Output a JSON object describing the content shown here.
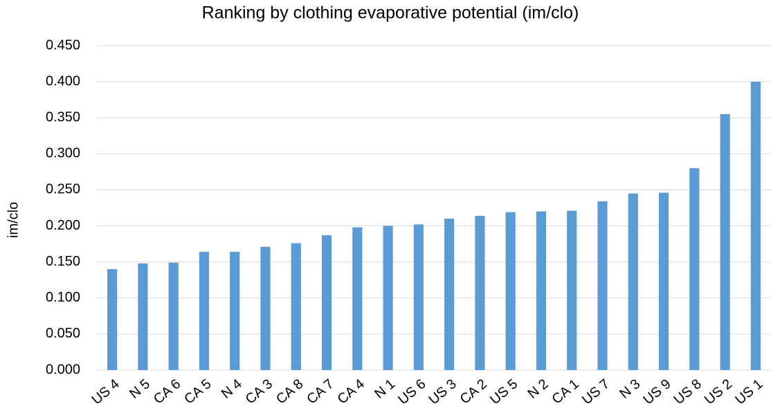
{
  "chart_data": {
    "type": "bar",
    "title": "Ranking by clothing evaporative potential (im/clo)",
    "y_label": "im/clo",
    "categories": [
      "US 4",
      "N 5",
      "CA 6",
      "CA 5",
      "N 4",
      "CA 3",
      "CA 8",
      "CA 7",
      "CA 4",
      "N 1",
      "US 6",
      "US 3",
      "CA 2",
      "US 5",
      "N 2",
      "CA 1",
      "US 7",
      "N 3",
      "US 9",
      "US 8",
      "US 2",
      "US 1"
    ],
    "values": [
      0.14,
      0.148,
      0.149,
      0.164,
      0.164,
      0.171,
      0.176,
      0.187,
      0.198,
      0.2,
      0.202,
      0.21,
      0.214,
      0.219,
      0.22,
      0.221,
      0.234,
      0.245,
      0.246,
      0.28,
      0.355,
      0.4
    ],
    "color": "#5b9bd5",
    "ylim": [
      0,
      0.45
    ],
    "yticks": [
      {
        "value": 0,
        "label": "0.000"
      },
      {
        "value": 0.05,
        "label": "0.050"
      },
      {
        "value": 0.1,
        "label": "0.100"
      },
      {
        "value": 0.15,
        "label": "0.150"
      },
      {
        "value": 0.2,
        "label": "0.200"
      },
      {
        "value": 0.25,
        "label": "0.250"
      },
      {
        "value": 0.3,
        "label": "0.300"
      },
      {
        "value": 0.35,
        "label": "0.350"
      },
      {
        "value": 0.4,
        "label": "0.400"
      },
      {
        "value": 0.45,
        "label": "0.450"
      }
    ],
    "grid": true
  }
}
